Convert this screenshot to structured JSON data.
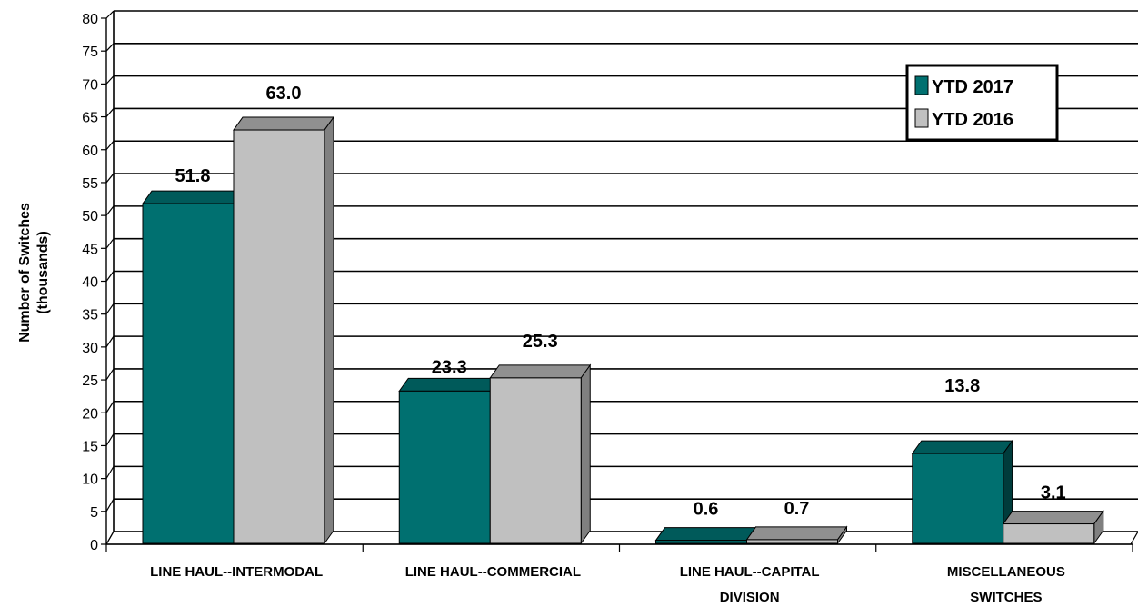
{
  "chart_data": {
    "type": "bar",
    "title": "",
    "ylabel": [
      "Number of Switches",
      "(thousands)"
    ],
    "xlabel": "",
    "ylim": [
      0,
      80
    ],
    "ytick_step": 5,
    "grid": true,
    "legend_position": "top-right",
    "categories": [
      [
        "LINE HAUL--INTERMODAL"
      ],
      [
        "LINE HAUL--COMMERCIAL"
      ],
      [
        "LINE HAUL--CAPITAL",
        "DIVISION"
      ],
      [
        "MISCELLANEOUS",
        "SWITCHES"
      ]
    ],
    "series": [
      {
        "name": "YTD 2017",
        "values": [
          51.8,
          23.3,
          0.6,
          13.8
        ],
        "labels": [
          "51.8",
          "23.3",
          "0.6",
          "13.8"
        ],
        "color": "#007070",
        "top_color": "#005a5a",
        "side_color": "#003c3c"
      },
      {
        "name": "YTD 2016",
        "values": [
          63.0,
          25.3,
          0.7,
          3.1
        ],
        "labels": [
          "63.0",
          "25.3",
          "0.7",
          "3.1"
        ],
        "color": "#c0c0c0",
        "top_color": "#909090",
        "side_color": "#808080"
      }
    ]
  }
}
